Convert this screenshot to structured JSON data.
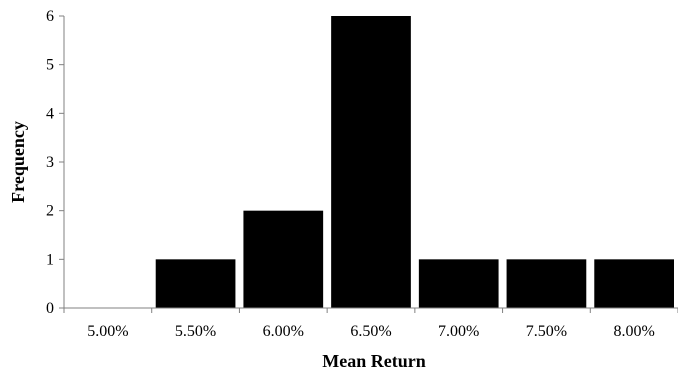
{
  "chart_data": {
    "type": "bar",
    "title": "",
    "xlabel": "Mean Return",
    "ylabel": "Frequency",
    "categories": [
      "5.00%",
      "5.50%",
      "6.00%",
      "6.50%",
      "7.00%",
      "7.50%",
      "8.00%"
    ],
    "values": [
      0,
      1,
      2,
      6,
      1,
      1,
      1
    ],
    "ylim": [
      0,
      6
    ],
    "yticks": [
      0,
      1,
      2,
      3,
      4,
      5,
      6
    ],
    "grid": false,
    "legend": "none",
    "bar_color": "#000000"
  }
}
